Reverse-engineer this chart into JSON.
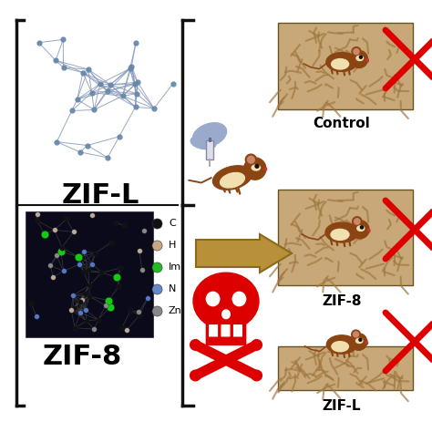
{
  "background_color": "#ffffff",
  "zif_l_label": "ZIF-L",
  "zif_8_label": "ZIF-8",
  "control_label": "Control",
  "zif8_outcome_label": "ZIF-8",
  "zifl_outcome_label": "ZIF-L",
  "legend_items": [
    {
      "label": "C",
      "color": "#111111"
    },
    {
      "label": "H",
      "color": "#c8a882"
    },
    {
      "label": "Im",
      "color": "#22bb22"
    },
    {
      "label": "N",
      "color": "#6688cc"
    },
    {
      "label": "Zn",
      "color": "#888888"
    }
  ],
  "skull_color": "#dd0000",
  "arrow_color": "#b8903a",
  "bracket_color": "#111111",
  "red_x_color": "#dd0000",
  "injection_blue": "#99aacc",
  "bedding_color": "#c8a878",
  "bedding_edge": "#9a8040",
  "mouse_body": "#8b4513",
  "mouse_belly": "#f0e0b0"
}
